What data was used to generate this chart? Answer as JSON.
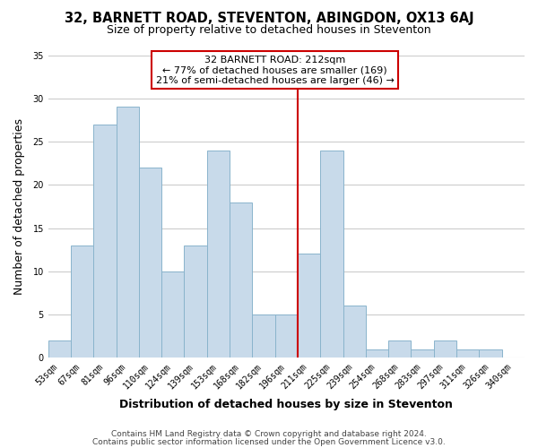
{
  "title1": "32, BARNETT ROAD, STEVENTON, ABINGDON, OX13 6AJ",
  "title2": "Size of property relative to detached houses in Steventon",
  "xlabel": "Distribution of detached houses by size in Steventon",
  "ylabel": "Number of detached properties",
  "bin_labels": [
    "53sqm",
    "67sqm",
    "81sqm",
    "96sqm",
    "110sqm",
    "124sqm",
    "139sqm",
    "153sqm",
    "168sqm",
    "182sqm",
    "196sqm",
    "211sqm",
    "225sqm",
    "239sqm",
    "254sqm",
    "268sqm",
    "283sqm",
    "297sqm",
    "311sqm",
    "326sqm",
    "340sqm"
  ],
  "bar_heights": [
    2,
    13,
    27,
    29,
    22,
    10,
    13,
    24,
    18,
    5,
    5,
    12,
    24,
    6,
    1,
    2,
    1,
    2,
    1,
    1,
    0
  ],
  "bar_color": "#c8daea",
  "bar_edge_color": "#8ab4cc",
  "vline_x_idx": 11,
  "annotation_title": "32 BARNETT ROAD: 212sqm",
  "annotation_line1": "← 77% of detached houses are smaller (169)",
  "annotation_line2": "21% of semi-detached houses are larger (46) →",
  "annotation_box_color": "#ffffff",
  "annotation_box_edge_color": "#cc0000",
  "vline_color": "#cc0000",
  "ylim": [
    0,
    35
  ],
  "yticks": [
    0,
    5,
    10,
    15,
    20,
    25,
    30,
    35
  ],
  "footer1": "Contains HM Land Registry data © Crown copyright and database right 2024.",
  "footer2": "Contains public sector information licensed under the Open Government Licence v3.0.",
  "bg_color": "#ffffff",
  "grid_color": "#cccccc",
  "title1_fontsize": 10.5,
  "title2_fontsize": 9,
  "axis_label_fontsize": 9,
  "tick_fontsize": 7,
  "annotation_fontsize": 8,
  "footer_fontsize": 6.5
}
